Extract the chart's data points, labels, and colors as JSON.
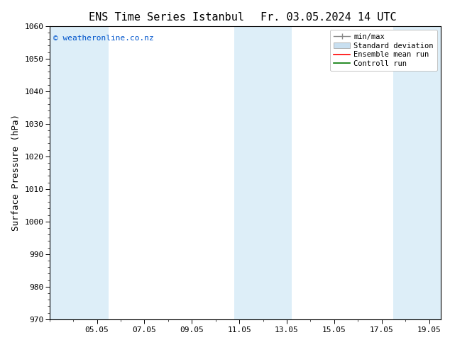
{
  "title_left": "ENS Time Series Istanbul",
  "title_right": "Fr. 03.05.2024 14 UTC",
  "ylabel": "Surface Pressure (hPa)",
  "ylim": [
    970,
    1060
  ],
  "yticks": [
    970,
    980,
    990,
    1000,
    1010,
    1020,
    1030,
    1040,
    1050,
    1060
  ],
  "xtick_positions": [
    5,
    7,
    9,
    11,
    13,
    15,
    17,
    19
  ],
  "xtick_labels": [
    "05.05",
    "07.05",
    "09.05",
    "11.05",
    "13.05",
    "15.05",
    "17.05",
    "19.05"
  ],
  "xlim": [
    3.0,
    19.5
  ],
  "watermark": "© weatheronline.co.nz",
  "watermark_color": "#0055cc",
  "background_color": "#ffffff",
  "plot_bg_color": "#ffffff",
  "shaded_regions": [
    {
      "x_start": 3.0,
      "x_end": 5.5
    },
    {
      "x_start": 10.8,
      "x_end": 13.2
    },
    {
      "x_start": 17.5,
      "x_end": 19.5
    }
  ],
  "shaded_color": "#ddeef8",
  "legend_labels": [
    "min/max",
    "Standard deviation",
    "Ensemble mean run",
    "Controll run"
  ],
  "minmax_bar_color": "#888888",
  "std_fill_color": "#c8dff0",
  "ensemble_mean_color": "#ff0000",
  "control_run_color": "#007700",
  "title_fontsize": 11,
  "axis_label_fontsize": 9,
  "tick_fontsize": 8,
  "watermark_fontsize": 8,
  "legend_fontsize": 7.5
}
